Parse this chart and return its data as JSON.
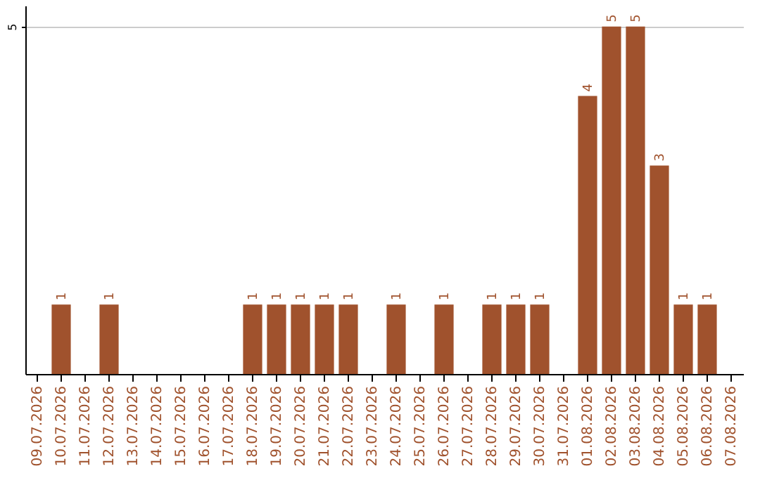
{
  "chart_data": {
    "type": "bar",
    "categories": [
      "09.07.2026",
      "10.07.2026",
      "11.07.2026",
      "12.07.2026",
      "13.07.2026",
      "14.07.2026",
      "15.07.2026",
      "16.07.2026",
      "17.07.2026",
      "18.07.2026",
      "19.07.2026",
      "20.07.2026",
      "21.07.2026",
      "22.07.2026",
      "23.07.2026",
      "24.07.2026",
      "25.07.2026",
      "26.07.2026",
      "27.07.2026",
      "28.07.2026",
      "29.07.2026",
      "30.07.2026",
      "31.07.2026",
      "01.08.2026",
      "02.08.2026",
      "03.08.2026",
      "04.08.2026",
      "05.08.2026",
      "06.08.2026",
      "07.08.2026"
    ],
    "values": [
      0,
      1,
      0,
      1,
      0,
      0,
      0,
      0,
      0,
      1,
      1,
      1,
      1,
      1,
      0,
      1,
      0,
      1,
      0,
      1,
      1,
      1,
      0,
      4,
      5,
      5,
      3,
      1,
      1,
      0
    ],
    "value_labels": [
      null,
      "1",
      null,
      "1",
      null,
      null,
      null,
      null,
      null,
      "1",
      "1",
      "1",
      "1",
      "1",
      null,
      "1",
      null,
      "1",
      null,
      "1",
      "1",
      "1",
      null,
      "4",
      "5",
      "5",
      "3",
      "1",
      "1",
      null
    ],
    "color": "#a0522d",
    "ylim": [
      0,
      5.3
    ],
    "yticks": [
      5
    ],
    "grid": "y"
  }
}
